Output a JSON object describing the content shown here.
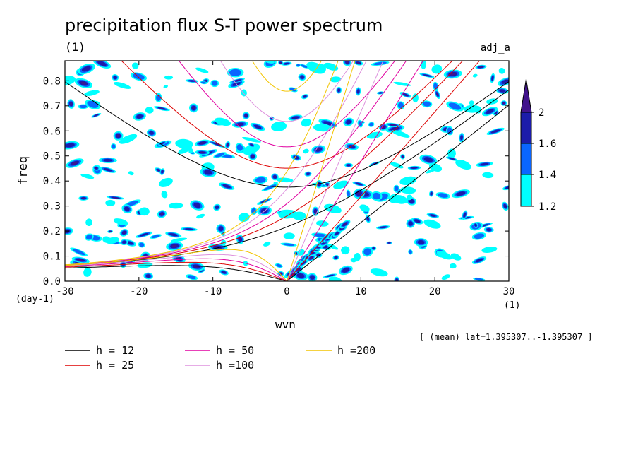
{
  "title": "precipitation flux S-T power spectrum",
  "subtitle_units": "(1)",
  "var_name": "adj_a",
  "mean_note": "[ (mean) lat=1.395307..-1.395307 ]",
  "chart_data": {
    "type": "heatmap",
    "xlabel": "wvn",
    "ylabel": "freq",
    "x_units_left": "(day-1)",
    "x_units_right": "(1)",
    "xlim": [
      -30,
      30
    ],
    "ylim": [
      0,
      0.88
    ],
    "x_ticks": [
      -30,
      -20,
      -10,
      0,
      10,
      20,
      30
    ],
    "y_ticks": [
      0.0,
      0.1,
      0.2,
      0.3,
      0.4,
      0.5,
      0.6,
      0.7,
      0.8
    ],
    "y_tick_labels": [
      "0.0",
      "0.1",
      "0.2",
      "0.3",
      "0.4",
      "0.5",
      "0.6",
      "0.7",
      "0.8"
    ],
    "x_tick_labels": [
      "-30",
      "-20",
      "-10",
      "0",
      "10",
      "20",
      "30"
    ],
    "colorbar": {
      "levels": [
        1.2,
        1.4,
        1.6,
        2
      ],
      "labels": [
        "1.2",
        "1.4",
        "1.6",
        "2"
      ],
      "colors": [
        "#00ffff",
        "#0a66ff",
        "#1c1caa",
        "#42148c"
      ]
    },
    "dispersion_curves": [
      {
        "label": "h = 12",
        "h": 12,
        "color": "#000000"
      },
      {
        "label": "h = 25",
        "h": 25,
        "color": "#dd0000"
      },
      {
        "label": "h = 50",
        "h": 50,
        "color": "#e000a0"
      },
      {
        "label": "h =100",
        "h": 100,
        "color": "#dd90dd"
      },
      {
        "label": "h =200",
        "h": 200,
        "color": "#f2c400"
      }
    ],
    "grid": false,
    "legend_position": "bottom-left"
  }
}
